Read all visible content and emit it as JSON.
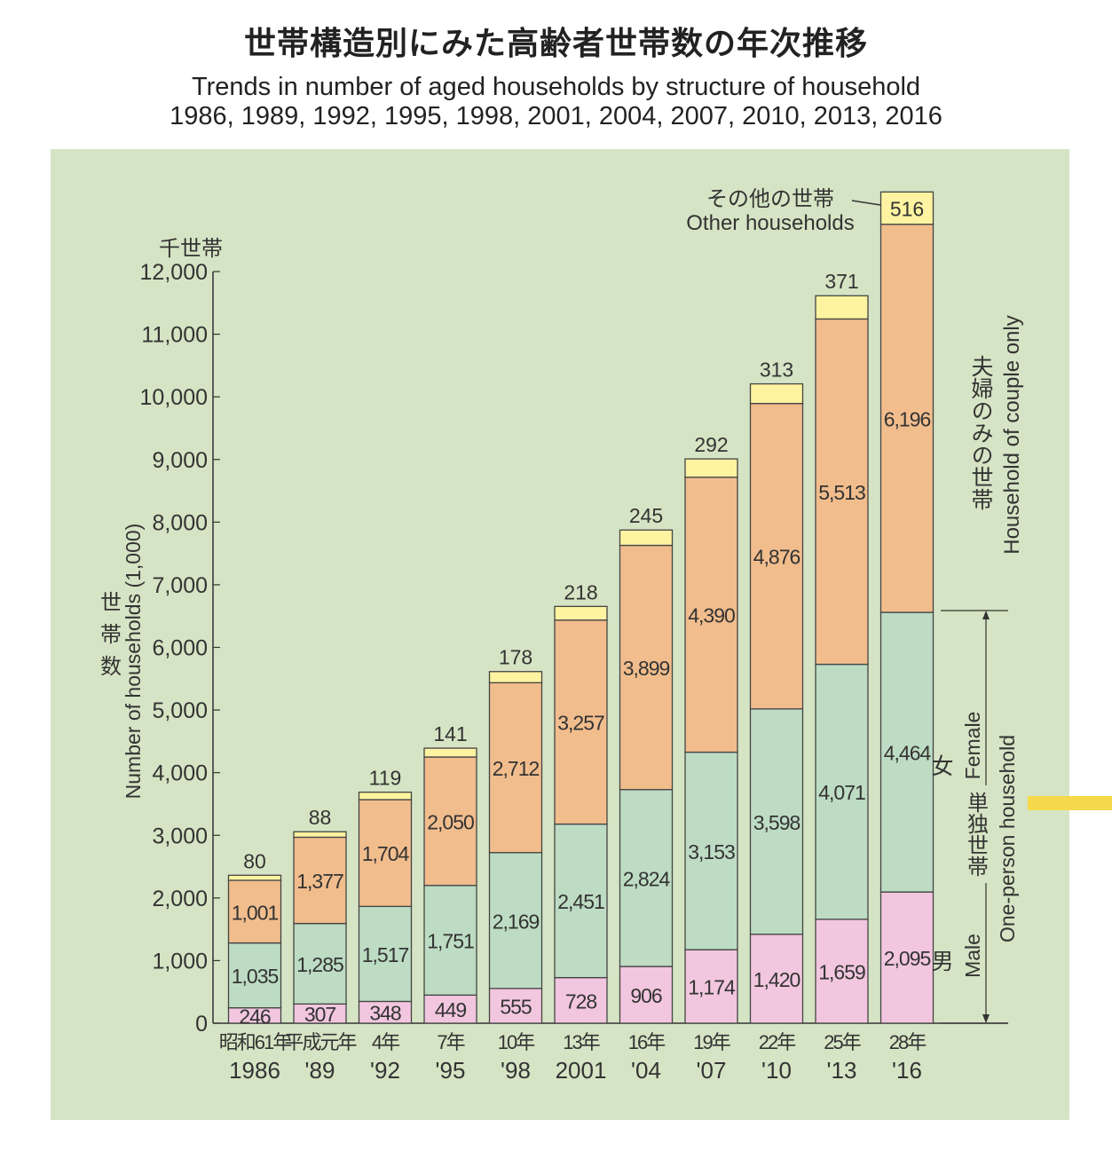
{
  "header": {
    "title_ja": "世帯構造別にみた高齢者世帯数の年次推移",
    "subtitle_en_1": "Trends in number of aged households by structure of household",
    "subtitle_en_2": "1986, 1989, 1992, 1995, 1998, 2001, 2004, 2007, 2010, 2013, 2016"
  },
  "chart_data": {
    "type": "bar",
    "stacked": true,
    "categories_ja": [
      "昭和61年",
      "平成元年",
      "4年",
      "7年",
      "10年",
      "13年",
      "16年",
      "19年",
      "22年",
      "25年",
      "28年"
    ],
    "categories": [
      "1986",
      "'89",
      "'92",
      "'95",
      "'98",
      "2001",
      "'04",
      "'07",
      "'10",
      "'13",
      "'16"
    ],
    "series": [
      {
        "name": "男 Male",
        "group": "単独世帯 One-person household",
        "color": "#f1c6de",
        "values": [
          246,
          307,
          348,
          449,
          555,
          728,
          906,
          1174,
          1420,
          1659,
          2095
        ]
      },
      {
        "name": "女 Female",
        "group": "単独世帯 One-person household",
        "color": "#bddcc3",
        "values": [
          1035,
          1285,
          1517,
          1751,
          2169,
          2451,
          2824,
          3153,
          3598,
          4071,
          4464
        ]
      },
      {
        "name": "夫婦のみの世帯 Household of couple only",
        "color": "#f1bd8d",
        "values": [
          1001,
          1377,
          1704,
          2050,
          2712,
          3257,
          3899,
          4390,
          4876,
          5513,
          6196
        ]
      },
      {
        "name": "その他の世帯 Other households",
        "color": "#fdf3a0",
        "values": [
          80,
          88,
          119,
          141,
          178,
          218,
          245,
          292,
          313,
          371,
          516
        ]
      }
    ],
    "ylabel_ja": "世帯数",
    "ylabel": "Number of households (1,000)",
    "yunit": "千世帯",
    "ylim": [
      0,
      12000
    ],
    "yticks": [
      "0",
      "1,000",
      "2,000",
      "3,000",
      "4,000",
      "5,000",
      "6,000",
      "7,000",
      "8,000",
      "9,000",
      "10,000",
      "11,000",
      "12,000"
    ],
    "grid": false,
    "legend_labels": {
      "other_ja": "その他の世帯",
      "other_en": "Other households",
      "couple_ja": "夫婦のみの世帯",
      "couple_en": "Household of couple only",
      "female_ja": "女",
      "female_en": "Female",
      "male_ja": "男",
      "male_en": "Male",
      "single_ja": "単独世帯",
      "single_en": "One-person household"
    },
    "background": "#d5e4c4"
  }
}
